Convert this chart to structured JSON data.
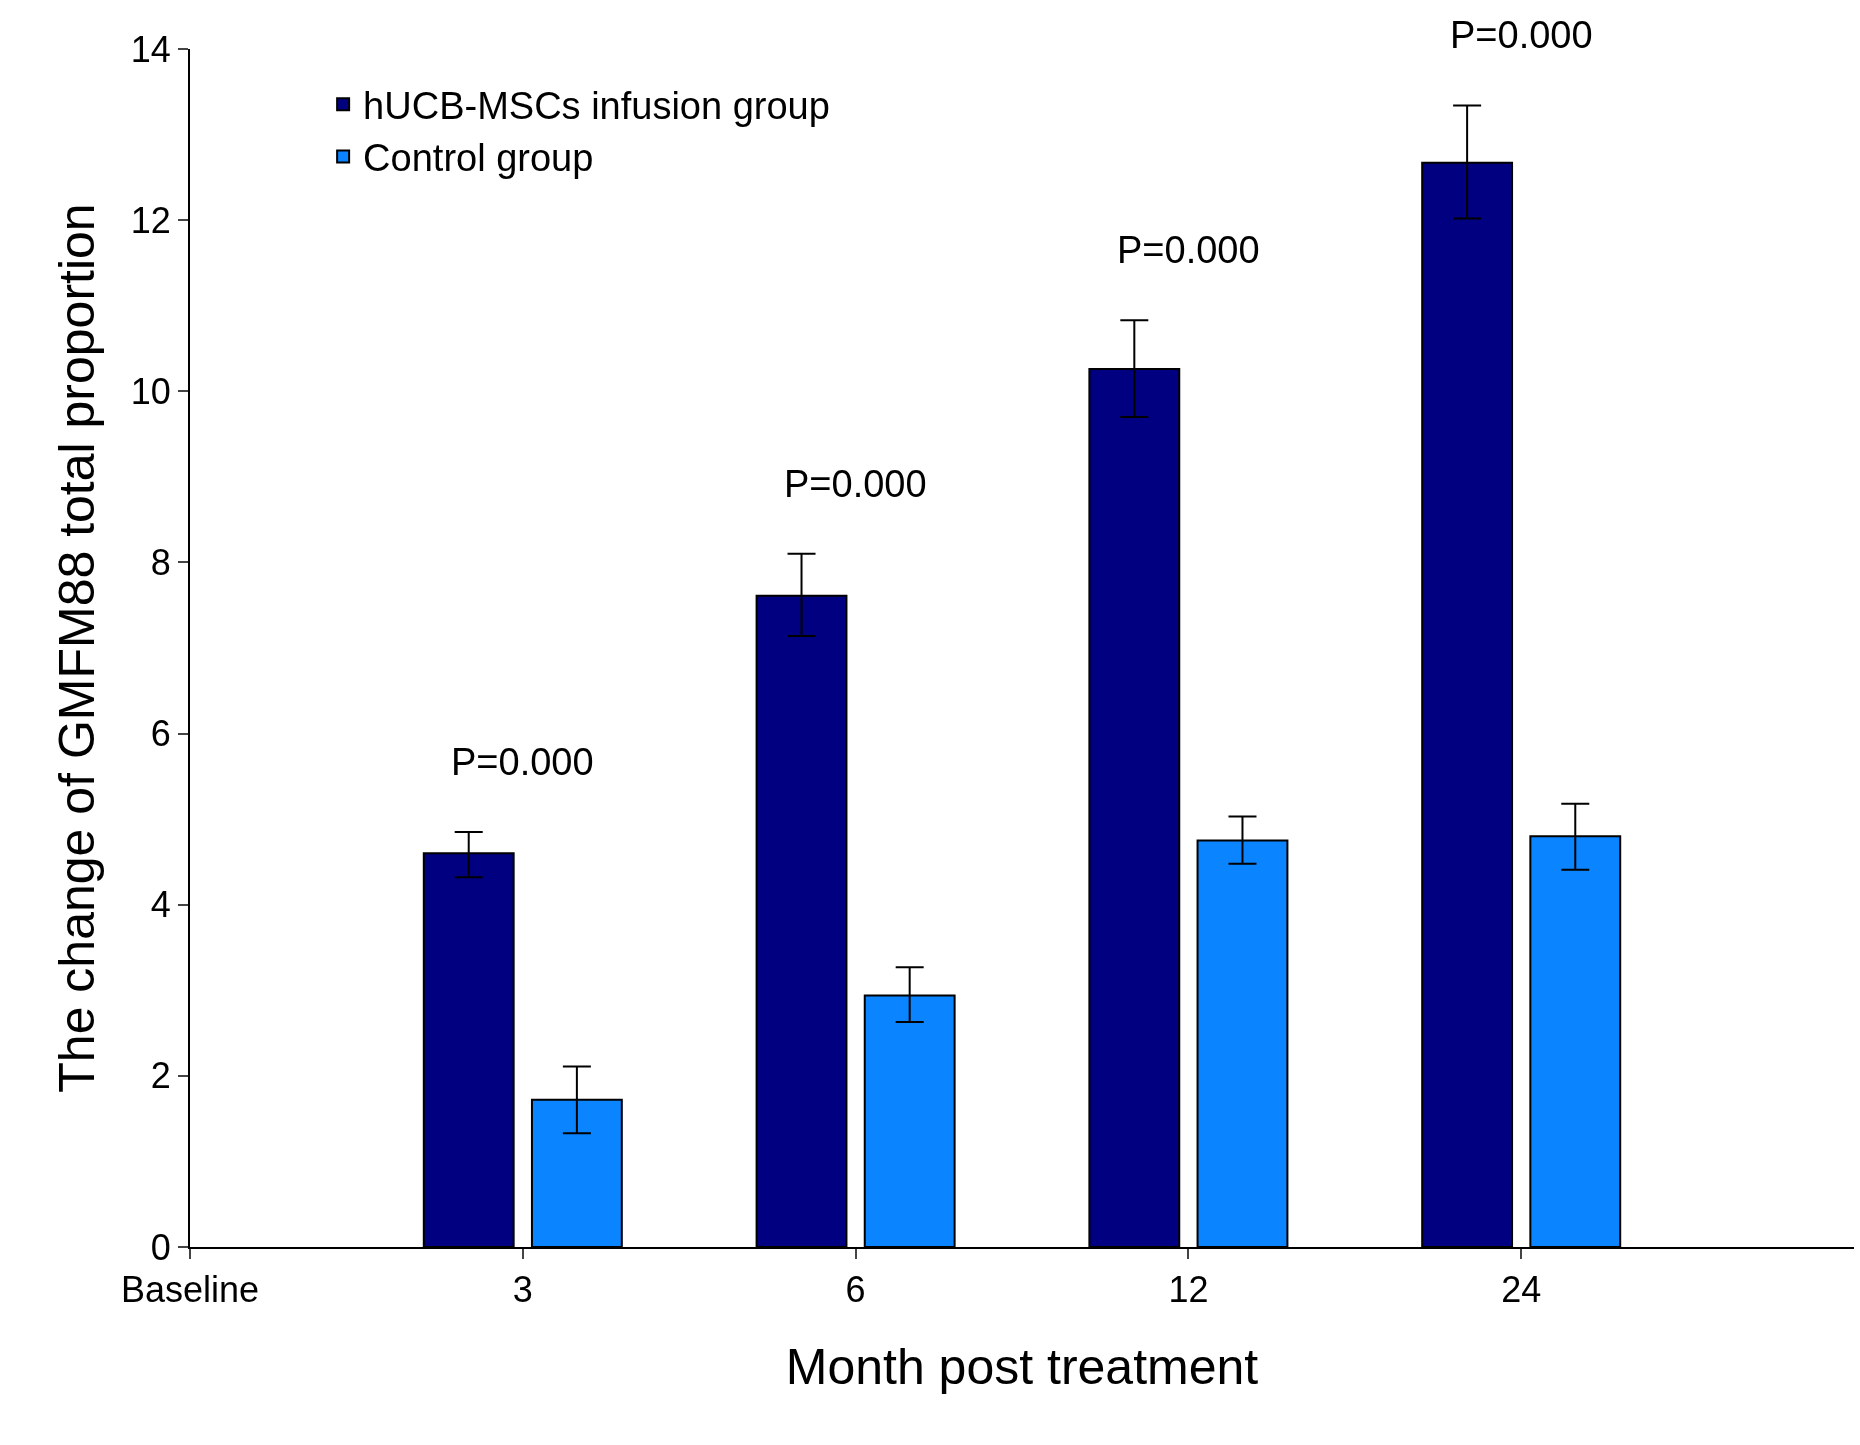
{
  "chart_data": {
    "type": "bar",
    "xlabel": "Month post treatment",
    "ylabel": "The change of GMFM88 total proportion",
    "categories": [
      "Baseline",
      "3",
      "6",
      "12",
      "24"
    ],
    "series": [
      {
        "name": "hUCB-MSCs infusion group",
        "color": "#000080",
        "values": [
          null,
          4.6,
          7.61,
          10.26,
          12.67
        ],
        "errors": [
          null,
          [
            4.32,
            4.85
          ],
          [
            7.14,
            8.1
          ],
          [
            9.7,
            10.83
          ],
          [
            12.02,
            13.34
          ]
        ]
      },
      {
        "name": "Control group",
        "color": "#0a84ff",
        "values": [
          null,
          1.72,
          2.94,
          4.75,
          4.8
        ],
        "errors": [
          null,
          [
            1.33,
            2.11
          ],
          [
            2.63,
            3.27
          ],
          [
            4.48,
            5.03
          ],
          [
            4.41,
            5.18
          ]
        ]
      }
    ],
    "annotations": [
      "P=0.000",
      "P=0.000",
      "P=0.000",
      "P=0.000"
    ],
    "ylim": [
      0,
      14
    ],
    "yticks": [
      0,
      2,
      4,
      6,
      8,
      10,
      12,
      14
    ],
    "grid": false,
    "legend": "top left"
  }
}
